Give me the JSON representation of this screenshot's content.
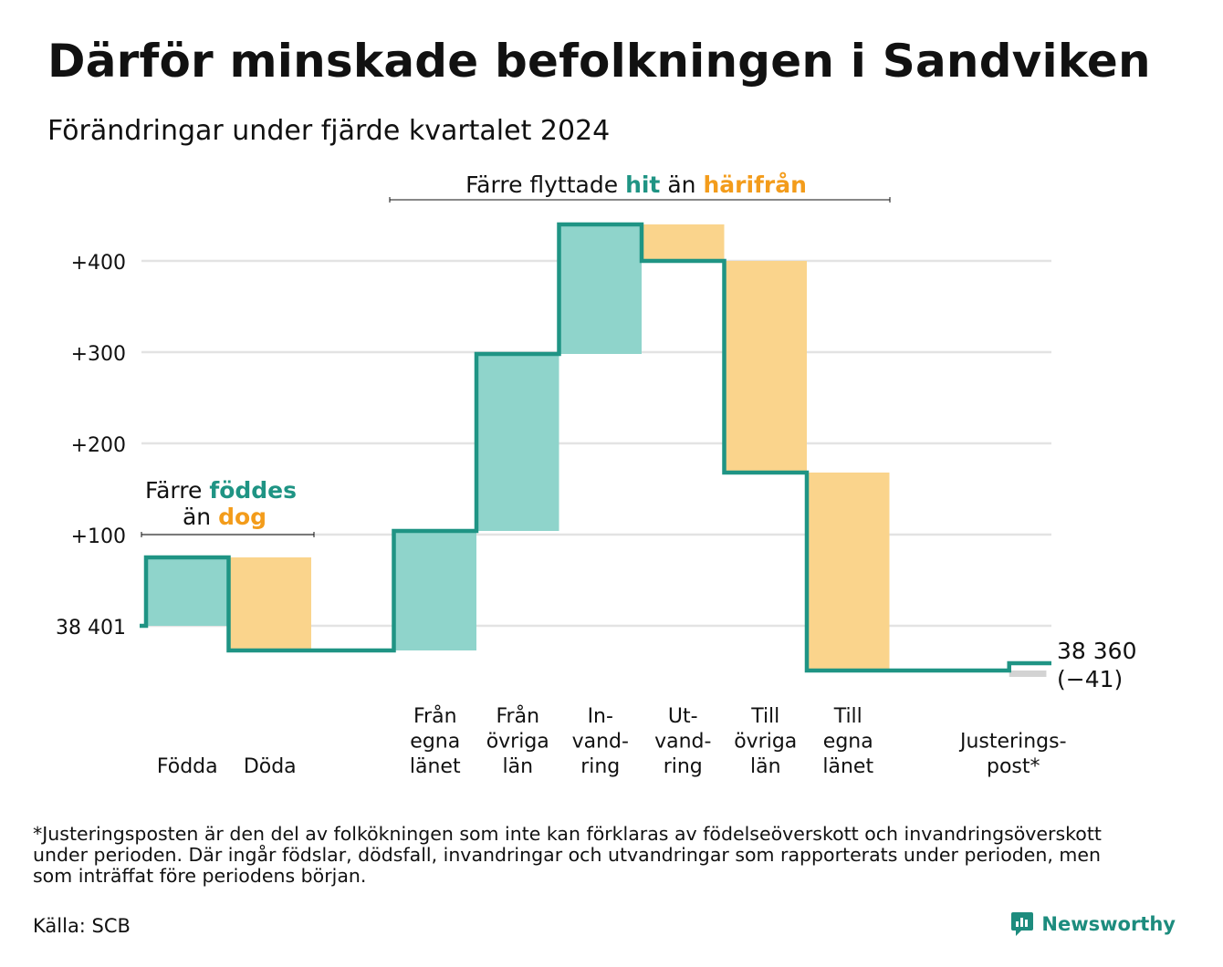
{
  "title": "Därför minskade befolkningen i Sandviken",
  "subtitle": "Förändringar under fjärde kvartalet 2024",
  "colors": {
    "in": "#8fd4cb",
    "out": "#fad48c",
    "adjust": "#d3d3d3",
    "line": "#1f9484",
    "accent_in": "#1f9484",
    "accent_out": "#f39c1b",
    "grid": "#e3e3e3"
  },
  "chart_data": {
    "type": "waterfall",
    "start_value": 38401,
    "start_label": "38 401",
    "end_value_label": "38 360",
    "end_change_label": "(−41)",
    "y_ticks": [
      {
        "value": 0,
        "label": "38 401"
      },
      {
        "value": 100,
        "label": "+100"
      },
      {
        "value": 200,
        "label": "+200"
      },
      {
        "value": 300,
        "label": "+300"
      },
      {
        "value": 400,
        "label": "+400"
      }
    ],
    "ylim": [
      -60,
      450
    ],
    "steps": [
      {
        "category": "Födda",
        "lines": [
          "Födda"
        ],
        "change": 75,
        "kind": "in"
      },
      {
        "category": "Döda",
        "lines": [
          "Döda"
        ],
        "change": -102,
        "kind": "out"
      },
      {
        "category": "",
        "lines": [],
        "change": 0,
        "kind": "gap"
      },
      {
        "category": "Från egna länet",
        "lines": [
          "Från",
          "egna",
          "länet"
        ],
        "change": 131,
        "kind": "in"
      },
      {
        "category": "Från övriga län",
        "lines": [
          "Från",
          "övriga",
          "län"
        ],
        "change": 194,
        "kind": "in"
      },
      {
        "category": "Invandring",
        "lines": [
          "In-",
          "vand-",
          "ring"
        ],
        "change": 142,
        "kind": "in"
      },
      {
        "category": "Utvandring",
        "lines": [
          "Ut-",
          "vand-",
          "ring"
        ],
        "change": -40,
        "kind": "out"
      },
      {
        "category": "Till övriga län",
        "lines": [
          "Till",
          "övriga",
          "län"
        ],
        "change": -232,
        "kind": "out"
      },
      {
        "category": "Till egna länet",
        "lines": [
          "Till",
          "egna",
          "länet"
        ],
        "change": -217,
        "kind": "out"
      },
      {
        "category": "",
        "lines": [],
        "change": 0,
        "kind": "gap"
      },
      {
        "category": "Justeringspost*",
        "lines": [
          "Justerings-",
          "post*"
        ],
        "change": 8,
        "kind": "adjust"
      }
    ],
    "annotations": [
      {
        "id": "births",
        "text_parts": [
          {
            "text": "Färre ",
            "style": "plain"
          },
          {
            "text": "föddes",
            "style": "in"
          },
          {
            "text": "än ",
            "style": "plain",
            "newline": true
          },
          {
            "text": "dog",
            "style": "out"
          }
        ],
        "span": "Födda–Döda"
      },
      {
        "id": "moves",
        "text_parts": [
          {
            "text": "Färre flyttade ",
            "style": "plain"
          },
          {
            "text": "hit",
            "style": "in"
          },
          {
            "text": " än ",
            "style": "plain"
          },
          {
            "text": "härifrån",
            "style": "out"
          }
        ],
        "span": "Från egna länet–Till egna länet"
      }
    ]
  },
  "footnote_lines": [
    "*Justeringsposten är den del av folkökningen som inte kan förklaras av födelseöverskott och invandringsöverskott",
    "under perioden. Där ingår födslar, dödsfall, invandringar och utvandringar som rapporterats under perioden, men",
    "som inträffat före periodens början."
  ],
  "source": "Källa: SCB",
  "brand": "Newsworthy",
  "brand_icon": "newsworthy-logo-icon"
}
